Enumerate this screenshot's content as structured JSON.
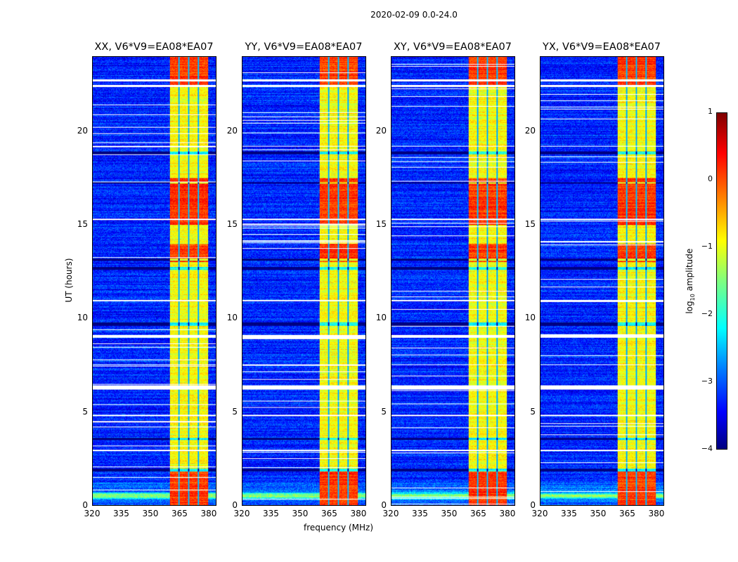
{
  "title": "2020-02-09 0.0-24.0",
  "chart_data": {
    "type": "heatmap",
    "title": "2020-02-09 0.0-24.0",
    "xlabel": "frequency (MHz)",
    "ylabel": "UT (hours)",
    "xlim": [
      320,
      384
    ],
    "ylim": [
      0,
      24
    ],
    "xticks": [
      "320",
      "335",
      "350",
      "365",
      "380"
    ],
    "yticks": [
      "0",
      "5",
      "10",
      "15",
      "20"
    ],
    "panels": [
      {
        "title": "XX, V6*V9=EA08*EA07",
        "seed": 11
      },
      {
        "title": "YY, V6*V9=EA08*EA07",
        "seed": 23
      },
      {
        "title": "XY, V6*V9=EA08*EA07",
        "seed": 37
      },
      {
        "title": "YX, V6*V9=EA08*EA07",
        "seed": 51
      }
    ],
    "background_level_log10": -3.2,
    "strong_band_mhz": [
      360,
      380
    ],
    "band_level_log10": -0.9,
    "band_channel_gaps_mhz": [
      365,
      370,
      375
    ],
    "band_hot_hours": [
      [
        0,
        1.8
      ],
      [
        13,
        14
      ],
      [
        15,
        17.5
      ],
      [
        22.5,
        24
      ]
    ],
    "flagged_hours": [
      [
        6.2,
        6.4
      ],
      [
        8.95,
        9.1
      ],
      [
        10.9,
        11.0
      ],
      [
        4.75,
        4.85
      ],
      [
        15.25,
        15.35
      ],
      [
        22.4,
        22.5
      ],
      [
        22.7,
        22.8
      ],
      [
        2.9,
        2.95
      ],
      [
        19.2,
        19.25
      ],
      [
        7.5,
        7.55
      ]
    ],
    "dark_rows_hours": [
      [
        18.8,
        18.95
      ],
      [
        12.6,
        12.75
      ],
      [
        13.1,
        13.2
      ],
      [
        9.6,
        9.8
      ],
      [
        1.8,
        1.95
      ],
      [
        3.5,
        3.6
      ],
      [
        17.2,
        17.3
      ]
    ],
    "colorbar": {
      "label": "log10 amplitude",
      "label_main": "log",
      "label_sub": "10",
      "label_rest": " amplitude",
      "range": [
        -4,
        1
      ],
      "ticks": [
        "1",
        "0",
        "−1",
        "−2",
        "−3",
        "−4"
      ],
      "colormap": "jet"
    }
  }
}
